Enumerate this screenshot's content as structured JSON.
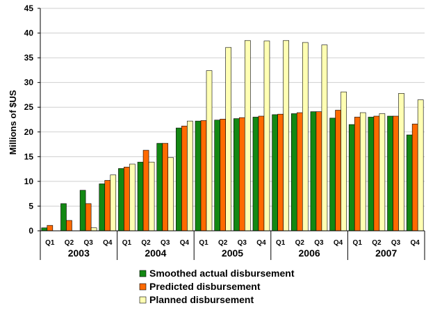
{
  "chart_data": {
    "type": "bar",
    "title": "",
    "xlabel": "",
    "ylabel": "Millions of $US",
    "ylim": [
      0,
      45
    ],
    "yticks": [
      "0",
      "5",
      "10",
      "15",
      "20",
      "25",
      "30",
      "35",
      "40",
      "45"
    ],
    "grid": true,
    "legend_position": "bottom",
    "categories": [
      "Q1",
      "Q2",
      "Q3",
      "Q4",
      "Q1",
      "Q2",
      "Q3",
      "Q4",
      "Q1",
      "Q2",
      "Q3",
      "Q4",
      "Q1",
      "Q2",
      "Q3",
      "Q4",
      "Q1",
      "Q2",
      "Q3",
      "Q4"
    ],
    "groups": [
      "2003",
      "2004",
      "2005",
      "2006",
      "2007"
    ],
    "series": [
      {
        "name": "Smoothed actual disbursement",
        "color": "#138813",
        "values": [
          0.6,
          5.5,
          8.2,
          9.5,
          12.6,
          13.9,
          17.7,
          20.8,
          22.2,
          22.4,
          22.7,
          23.0,
          23.5,
          23.7,
          24.1,
          22.8,
          21.5,
          23.0,
          23.2,
          19.4
        ]
      },
      {
        "name": "Predicted disbursement",
        "color": "#ff6a00",
        "values": [
          1.1,
          2.1,
          5.5,
          10.2,
          12.9,
          16.3,
          17.7,
          21.2,
          22.3,
          22.6,
          22.9,
          23.2,
          23.6,
          23.9,
          24.1,
          24.4,
          23.0,
          23.2,
          23.2,
          21.6
        ]
      },
      {
        "name": "Planned disbursement",
        "color": "#ffffb3",
        "values": [
          0,
          0,
          0.6,
          11.3,
          13.5,
          13.9,
          14.8,
          22.2,
          32.4,
          37.1,
          38.5,
          38.4,
          38.5,
          38.1,
          37.6,
          28.1,
          23.9,
          23.7,
          27.8,
          26.5
        ]
      }
    ]
  }
}
